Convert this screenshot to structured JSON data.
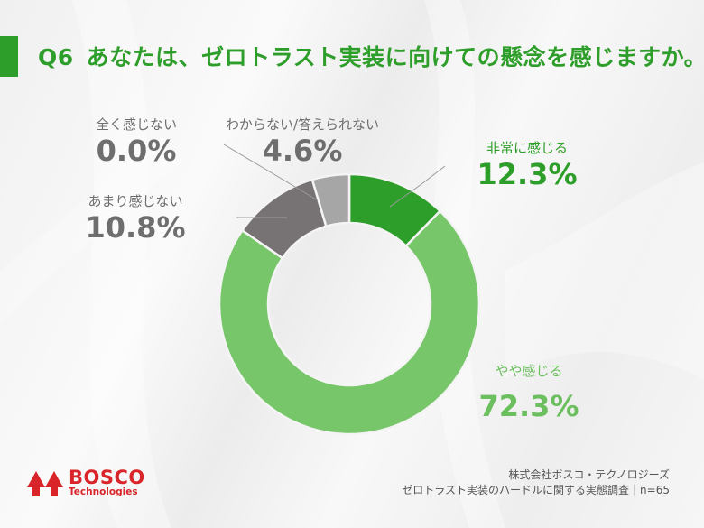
{
  "header": {
    "question_no": "Q6",
    "question_text": "あなたは、ゼロトラスト実装に向けての懸念を感じますか。"
  },
  "labels": {
    "very": {
      "name": "非常に感じる",
      "pct": "12.3%"
    },
    "somewhat": {
      "name": "やや感じる",
      "pct": "72.3%"
    },
    "not_much": {
      "name": "あまり感じない",
      "pct": "10.8%"
    },
    "not_at_all": {
      "name": "全く感じない",
      "pct": "0.0%"
    },
    "dont_know": {
      "name": "わからない/答えられない",
      "pct": "4.6%"
    }
  },
  "colors": {
    "very": "#2e9e2a",
    "somewhat": "#78c66a",
    "not_much": "#777273",
    "not_at_all": "#cccccc",
    "dont_know": "#a6a6a6",
    "title": "#2e9e2a",
    "brand": "#d9252a"
  },
  "footer": {
    "company": "株式会社ボスコ・テクノロジーズ",
    "survey": "ゼロトラスト実装のハードルに関する実態調査｜n=65"
  },
  "logo": {
    "name": "BOSCO",
    "sub": "Technologies"
  },
  "chart_data": {
    "type": "pie",
    "subtype": "donut",
    "title": "Q6 あなたは、ゼロトラスト実装に向けての懸念を感じますか。",
    "categories": [
      "非常に感じる",
      "やや感じる",
      "あまり感じない",
      "全く感じない",
      "わからない/答えられない"
    ],
    "values": [
      12.3,
      72.3,
      10.8,
      0.0,
      4.6
    ],
    "unit": "%",
    "n": 65,
    "start_angle": "12 o'clock",
    "direction": "clockwise",
    "legend": "none (callout labels)"
  }
}
